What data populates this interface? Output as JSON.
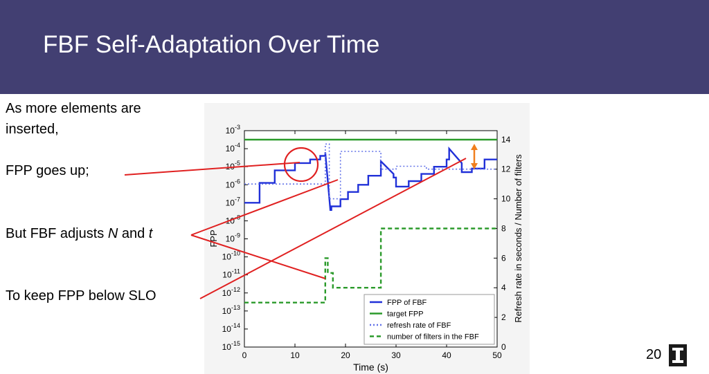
{
  "slide": {
    "title": "FBF Self-Adaptation Over Time",
    "bullets": {
      "line1a": "As more elements are",
      "line1b": "inserted,",
      "line2": "FPP goes up;",
      "line3_prefix": "But FBF adjusts ",
      "line3_N": "N",
      "line3_mid": " and ",
      "line3_t": "t",
      "line4": "To keep FPP below SLO"
    },
    "page_number": "20",
    "colors": {
      "header": "#423f72",
      "annotation": "#e02020",
      "arrow": "#f07f1e"
    }
  },
  "chart_data": {
    "type": "line",
    "xlabel": "Time (s)",
    "ylabel": "FPP",
    "y2label": "Refresh rate in seconds / Number of filters",
    "xlim": [
      0,
      50
    ],
    "ylim_log10": [
      -15,
      -3
    ],
    "y2lim": [
      0,
      14.6
    ],
    "xticks": [
      "0",
      "10",
      "20",
      "30",
      "40",
      "50"
    ],
    "yticks": [
      "10-3",
      "10-4",
      "10-5",
      "10-6",
      "10-7",
      "10-8",
      "10-9",
      "10-10",
      "10-11",
      "10-12",
      "10-13",
      "10-14",
      "10-15"
    ],
    "y2ticks": [
      "0",
      "2",
      "4",
      "6",
      "8",
      "10",
      "12",
      "14"
    ],
    "legend_position": "lower-right",
    "series": [
      {
        "name": "FPP of FBF",
        "axis": "left",
        "color": "#2030d8",
        "style": "solid",
        "x": [
          0,
          3,
          3,
          6,
          6,
          10,
          10,
          13,
          13,
          15,
          15,
          16,
          16,
          17,
          17,
          17.2,
          17.2,
          19,
          19,
          20.5,
          20.5,
          22.5,
          22.5,
          24.5,
          24.5,
          27,
          27,
          29.5,
          29.5,
          30,
          30,
          32.5,
          32.5,
          35,
          35,
          37.5,
          37.5,
          40,
          40,
          40.5,
          40.5,
          43,
          43,
          45,
          45,
          47.5,
          47.5,
          50
        ],
        "y_log10": [
          -7,
          -7,
          -5.9,
          -5.9,
          -5.2,
          -5.2,
          -4.8,
          -4.8,
          -4.6,
          -4.6,
          -4.4,
          -4.4,
          -4.2,
          -7.4,
          -7.4,
          -7.4,
          -7.2,
          -7.2,
          -6.8,
          -6.8,
          -6.4,
          -6.4,
          -6.0,
          -6.0,
          -5.5,
          -5.5,
          -4.7,
          -5.4,
          -5.6,
          -5.6,
          -6.1,
          -6.1,
          -5.8,
          -5.8,
          -5.4,
          -5.4,
          -5.0,
          -5.0,
          -4.6,
          -4.6,
          -4.0,
          -4.8,
          -5.3,
          -5.3,
          -5.1,
          -5.1,
          -4.6,
          -4.6
        ]
      },
      {
        "name": "target FPP",
        "axis": "left",
        "color": "#2a9a2a",
        "style": "solid",
        "x": [
          0,
          50
        ],
        "y_log10": [
          -3.5,
          -3.5
        ]
      },
      {
        "name": "refresh rate of FBF",
        "axis": "right",
        "color": "#6070e8",
        "style": "dotted",
        "x": [
          0,
          16,
          16,
          16.8,
          16.8,
          19,
          19,
          27,
          27,
          30,
          30,
          36,
          36,
          50
        ],
        "y": [
          11,
          11,
          13.7,
          13.7,
          10,
          10,
          13.2,
          13.2,
          12,
          12,
          12.2,
          12.2,
          12,
          12
        ]
      },
      {
        "name": "number of filters in the FBF",
        "axis": "right",
        "color": "#2a9a2a",
        "style": "dashed",
        "x": [
          0,
          16,
          16,
          16.5,
          16.5,
          17.5,
          17.5,
          19,
          19,
          27,
          27,
          50
        ],
        "y": [
          3,
          3,
          6,
          6,
          5,
          5,
          4,
          4,
          4,
          4,
          8,
          8
        ]
      }
    ]
  }
}
